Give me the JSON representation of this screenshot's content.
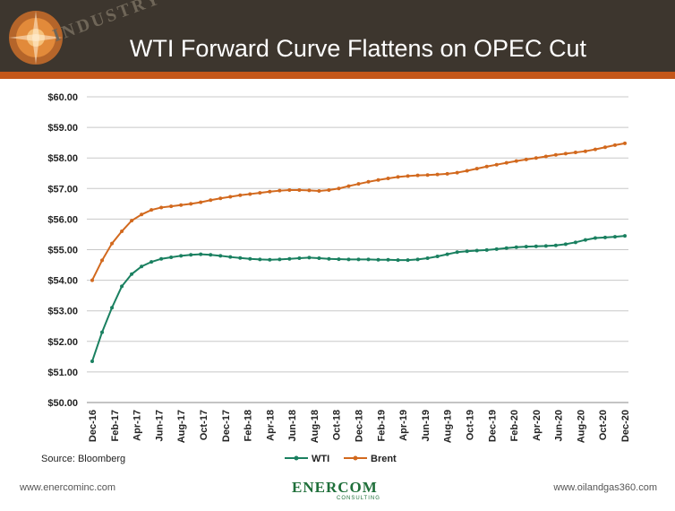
{
  "header": {
    "title": "WTI Forward Curve Flattens on OPEC Cut",
    "background_word": "INDUSTRY"
  },
  "colors": {
    "wti": "#1a8060",
    "brent": "#d2691e",
    "accent": "#c4571a",
    "header_bg": "#3d362e"
  },
  "chart_data": {
    "type": "line",
    "title": "WTI Forward Curve Flattens on OPEC Cut",
    "xlabel": "",
    "ylabel": "",
    "ylim": [
      50,
      60
    ],
    "y_ticks": [
      "$50.00",
      "$51.00",
      "$52.00",
      "$53.00",
      "$54.00",
      "$55.00",
      "$56.00",
      "$57.00",
      "$58.00",
      "$59.00",
      "$60.00"
    ],
    "x_tick_labels": [
      "Dec-16",
      "Feb-17",
      "Apr-17",
      "Jun-17",
      "Aug-17",
      "Oct-17",
      "Dec-17",
      "Feb-18",
      "Apr-18",
      "Jun-18",
      "Aug-18",
      "Oct-18",
      "Dec-18",
      "Feb-19",
      "Apr-19",
      "Jun-19",
      "Aug-19",
      "Oct-19",
      "Dec-19",
      "Feb-20",
      "Apr-20",
      "Jun-20",
      "Aug-20",
      "Oct-20",
      "Dec-20"
    ],
    "series": [
      {
        "name": "WTI",
        "color": "#1a8060",
        "values": [
          51.35,
          52.3,
          53.1,
          53.8,
          54.2,
          54.45,
          54.6,
          54.7,
          54.75,
          54.8,
          54.83,
          54.85,
          54.83,
          54.8,
          54.76,
          54.73,
          54.7,
          54.68,
          54.67,
          54.68,
          54.7,
          54.72,
          54.74,
          54.72,
          54.7,
          54.69,
          54.68,
          54.68,
          54.68,
          54.67,
          54.67,
          54.66,
          54.66,
          54.68,
          54.72,
          54.78,
          54.85,
          54.92,
          54.95,
          54.97,
          54.99,
          55.02,
          55.05,
          55.08,
          55.1,
          55.11,
          55.12,
          55.14,
          55.18,
          55.24,
          55.32,
          55.38,
          55.4,
          55.42,
          55.45
        ]
      },
      {
        "name": "Brent",
        "color": "#d2691e",
        "values": [
          54.0,
          54.65,
          55.2,
          55.6,
          55.95,
          56.15,
          56.3,
          56.38,
          56.42,
          56.46,
          56.5,
          56.55,
          56.62,
          56.68,
          56.73,
          56.78,
          56.82,
          56.86,
          56.9,
          56.93,
          56.95,
          56.95,
          56.94,
          56.92,
          56.95,
          57.0,
          57.08,
          57.15,
          57.22,
          57.28,
          57.33,
          57.38,
          57.41,
          57.43,
          57.44,
          57.46,
          57.48,
          57.52,
          57.58,
          57.65,
          57.72,
          57.78,
          57.84,
          57.9,
          57.95,
          58.0,
          58.05,
          58.1,
          58.14,
          58.18,
          58.22,
          58.28,
          58.35,
          58.42,
          58.48
        ]
      }
    ],
    "legend": [
      "WTI",
      "Brent"
    ],
    "legend_position": "bottom"
  },
  "source": "Source: Bloomberg",
  "footer": {
    "left": "www.enercominc.com",
    "right": "www.oilandgas360.com",
    "logo_text": "ENERCOM",
    "logo_sub": "CONSULTING"
  }
}
